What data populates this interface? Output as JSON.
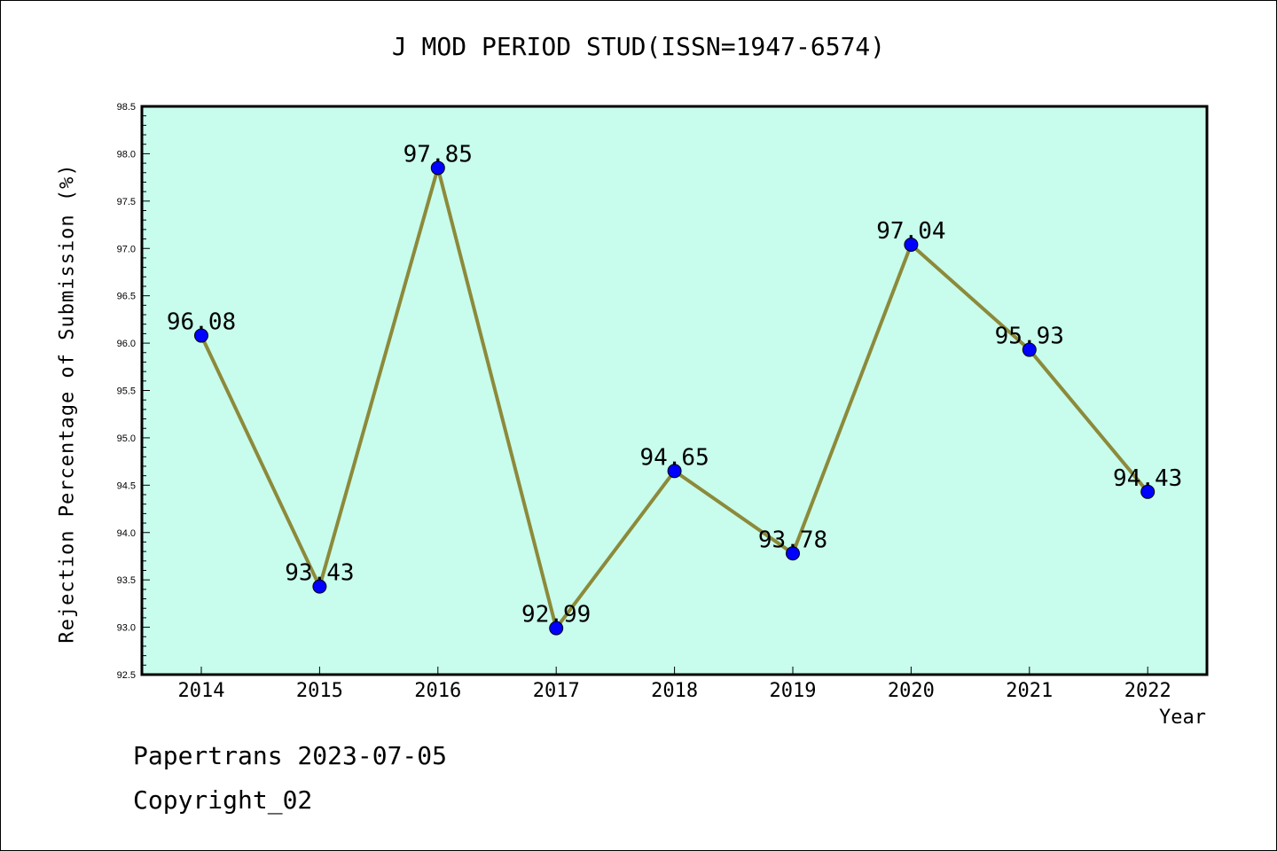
{
  "chart_data": {
    "type": "line",
    "title": "J MOD PERIOD STUD(ISSN=1947-6574)",
    "xlabel": "Year",
    "ylabel": "Rejection Percentage of Submission (%)",
    "categories": [
      "2014",
      "2015",
      "2016",
      "2017",
      "2018",
      "2019",
      "2020",
      "2021",
      "2022"
    ],
    "values": [
      96.08,
      93.43,
      97.85,
      92.99,
      94.65,
      93.78,
      97.04,
      95.93,
      94.43
    ],
    "data_labels": [
      "96.08",
      "93.43",
      "97.85",
      "92.99",
      "94.65",
      "93.78",
      "97.04",
      "95.93",
      "94.43"
    ],
    "ylim": [
      92.5,
      98.5
    ],
    "yticks": [
      "92.5",
      "93.0",
      "93.5",
      "94.0",
      "94.5",
      "95.0",
      "95.5",
      "96.0",
      "96.5",
      "97.0",
      "97.5",
      "98.0",
      "98.5"
    ],
    "grid": false,
    "colors": {
      "plot_background": "#c8fced",
      "line": "#8c8a3a",
      "marker": "#0000ff"
    }
  },
  "footer": {
    "line1": "Papertrans 2023-07-05",
    "line2": "Copyright_02"
  }
}
